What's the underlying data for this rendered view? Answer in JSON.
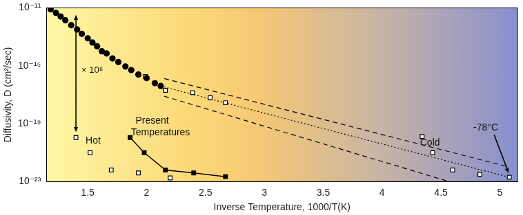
{
  "chart_data": {
    "type": "scatter",
    "x_label": "Inverse Temperature, 1000/T(K)",
    "y_label": "Diffusivity, D (cm²/sec)",
    "log": "y",
    "grid": false,
    "legend": false,
    "xlim": [
      1.15,
      5.15
    ],
    "xticks": [
      1.5,
      2,
      2.5,
      3,
      3.5,
      4,
      4.5,
      5
    ],
    "ylim": [
      1e-23,
      1e-11
    ],
    "yticks": [
      {
        "value": 1e-23,
        "label": "10⁻²³"
      },
      {
        "value": 1e-19,
        "label": "10⁻¹⁹"
      },
      {
        "value": 1e-15,
        "label": "10⁻¹⁵"
      },
      {
        "value": 1e-11,
        "label": "10⁻¹¹"
      }
    ],
    "annotations": [
      "× 10⁸",
      "-78°C"
    ],
    "series": [
      {
        "color": "#000000",
        "marker": "circle",
        "line_style": "none",
        "x": [
          1.185,
          1.23,
          1.27,
          1.31,
          1.36,
          1.41,
          1.45,
          1.5,
          1.54,
          1.58,
          1.62,
          1.66,
          1.71,
          1.76,
          1.82,
          1.87,
          1.93,
          2.0,
          2.07,
          2.12
        ],
        "values": [
          7.9e-12,
          4.5e-12,
          2.5e-12,
          1.4e-12,
          6.3e-13,
          3.2e-13,
          1.6e-13,
          7.9e-14,
          4e-14,
          2.2e-14,
          1e-14,
          7.1e-15,
          3.2e-15,
          1.8e-15,
          8.9e-16,
          5e-16,
          2.5e-16,
          1.4e-16,
          6.3e-17,
          4e-17
        ]
      },
      {
        "color": "#000000",
        "marker": "open_square",
        "line_style": "none",
        "x": [
          1.99,
          2.16,
          2.39,
          2.54,
          2.67
        ],
        "values": [
          1.8e-16,
          2e-17,
          1.4e-17,
          6.3e-18,
          2.8e-18
        ]
      },
      {
        "name": "Hot",
        "color": "#000000",
        "marker": "open_square",
        "line_style": "none",
        "x": [
          1.4,
          1.52,
          1.7,
          1.93,
          2.2
        ],
        "values": [
          1.1e-20,
          1e-21,
          6.3e-23,
          4e-23,
          1.8e-23
        ]
      },
      {
        "name": "Present Temperatures",
        "color": "#000000",
        "marker": "square",
        "line_style": "solid",
        "x": [
          1.86,
          1.98,
          2.16,
          2.4,
          2.67
        ],
        "values": [
          1.1e-20,
          1e-21,
          6.3e-23,
          4e-23,
          2.2e-23
        ]
      },
      {
        "name": "Cold",
        "color": "#000000",
        "marker": "open_square",
        "line_style": "none",
        "x": [
          4.34,
          4.43,
          4.6,
          4.83,
          5.08
        ],
        "values": [
          1.3e-20,
          1e-21,
          6.3e-23,
          3.2e-23,
          2e-23
        ]
      },
      {
        "color": "#000000",
        "marker": "none",
        "line_style": "dotted",
        "x": [
          2.12,
          5.08
        ],
        "values": [
          4e-17,
          2e-23
        ]
      },
      {
        "color": "#000000",
        "marker": "none",
        "line_style": "dashed",
        "x": [
          2.15,
          5.08
        ],
        "values": [
          1.3e-16,
          1e-22
        ]
      },
      {
        "color": "#000000",
        "marker": "none",
        "line_style": "dashed",
        "x": [
          2.15,
          4.57
        ],
        "values": [
          7.9e-18,
          1e-23
        ]
      }
    ]
  }
}
